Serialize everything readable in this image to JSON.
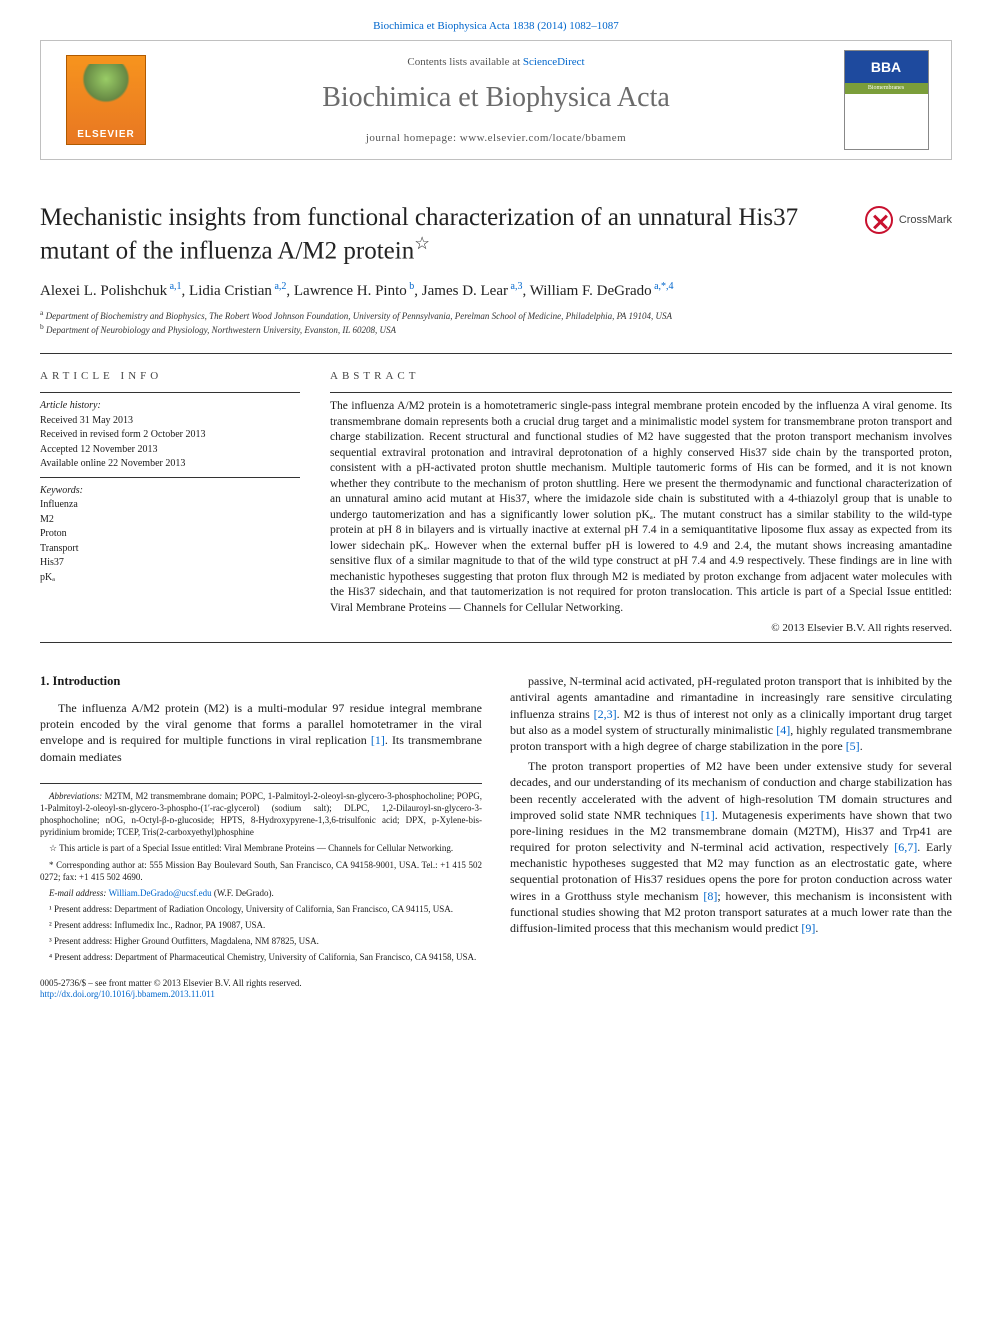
{
  "top_link": {
    "pre": "",
    "link": "Biochimica et Biophysica Acta 1838 (2014) 1082–1087"
  },
  "header": {
    "contents_pre": "Contents lists available at ",
    "contents_link": "ScienceDirect",
    "journal": "Biochimica et Biophysica Acta",
    "homepage": "journal homepage: www.elsevier.com/locate/bbamem",
    "elsevier": "ELSEVIER",
    "bba": "BBA",
    "bba_sub": "Biomembranes"
  },
  "title": {
    "line": "Mechanistic insights from functional characterization of an unnatural His37 mutant of the influenza A/M2 protein",
    "star": "☆"
  },
  "crossmark": "CrossMark",
  "authors": {
    "a1": {
      "name": "Alexei L. Polishchuk",
      "sup": " a,1"
    },
    "a2": {
      "name": "Lidia Cristian",
      "sup": " a,2"
    },
    "a3": {
      "name": "Lawrence H. Pinto",
      "sup": " b"
    },
    "a4": {
      "name": "James D. Lear",
      "sup": " a,3"
    },
    "a5": {
      "name": "William F. DeGrado",
      "sup": " a,*,4"
    }
  },
  "affil": {
    "a": "Department of Biochemistry and Biophysics, The Robert Wood Johnson Foundation, University of Pennsylvania, Perelman School of Medicine, Philadelphia, PA 19104, USA",
    "b": "Department of Neurobiology and Physiology, Northwestern University, Evanston, IL 60208, USA"
  },
  "info": {
    "heading": "article info",
    "hist_head": "Article history:",
    "h1": "Received 31 May 2013",
    "h2": "Received in revised form 2 October 2013",
    "h3": "Accepted 12 November 2013",
    "h4": "Available online 22 November 2013",
    "kw_head": "Keywords:",
    "k1": "Influenza",
    "k2": "M2",
    "k3": "Proton",
    "k4": "Transport",
    "k5": "His37",
    "k6": "pKₐ"
  },
  "abstract": {
    "heading": "abstract",
    "text": "The influenza A/M2 protein is a homotetrameric single-pass integral membrane protein encoded by the influenza A viral genome. Its transmembrane domain represents both a crucial drug target and a minimalistic model system for transmembrane proton transport and charge stabilization. Recent structural and functional studies of M2 have suggested that the proton transport mechanism involves sequential extraviral protonation and intraviral deprotonation of a highly conserved His37 side chain by the transported proton, consistent with a pH-activated proton shuttle mechanism. Multiple tautomeric forms of His can be formed, and it is not known whether they contribute to the mechanism of proton shuttling. Here we present the thermodynamic and functional characterization of an unnatural amino acid mutant at His37, where the imidazole side chain is substituted with a 4-thiazolyl group that is unable to undergo tautomerization and has a significantly lower solution pKₐ. The mutant construct has a similar stability to the wild-type protein at pH 8 in bilayers and is virtually inactive at external pH 7.4 in a semiquantitative liposome flux assay as expected from its lower sidechain pKₐ. However when the external buffer pH is lowered to 4.9 and 2.4, the mutant shows increasing amantadine sensitive flux of a similar magnitude to that of the wild type construct at pH 7.4 and 4.9 respectively. These findings are in line with mechanistic hypotheses suggesting that proton flux through M2 is mediated by proton exchange from adjacent water molecules with the His37 sidechain, and that tautomerization is not required for proton translocation. This article is part of a Special Issue entitled: Viral Membrane Proteins — Channels for Cellular Networking.",
    "copyright": "© 2013 Elsevier B.V. All rights reserved."
  },
  "section": {
    "num": "1.",
    "title": "Introduction"
  },
  "body": {
    "col1_p1": "The influenza A/M2 protein (M2) is a multi-modular 97 residue integral membrane protein encoded by the viral genome that forms a parallel homotetramer in the viral envelope and is required for multiple functions in viral replication [1]. Its transmembrane domain mediates",
    "col2_p1": "passive, N-terminal acid activated, pH-regulated proton transport that is inhibited by the antiviral agents amantadine and rimantadine in increasingly rare sensitive circulating influenza strains [2,3]. M2 is thus of interest not only as a clinically important drug target but also as a model system of structurally minimalistic [4], highly regulated transmembrane proton transport with a high degree of charge stabilization in the pore [5].",
    "col2_p2": "The proton transport properties of M2 have been under extensive study for several decades, and our understanding of its mechanism of conduction and charge stabilization has been recently accelerated with the advent of high-resolution TM domain structures and improved solid state NMR techniques [1]. Mutagenesis experiments have shown that two pore-lining residues in the M2 transmembrane domain (M2TM), His37 and Trp41 are required for proton selectivity and N-terminal acid activation, respectively [6,7]. Early mechanistic hypotheses suggested that M2 may function as an electrostatic gate, where sequential protonation of His37 residues opens the pore for proton conduction across water wires in a Grotthuss style mechanism [8]; however, this mechanism is inconsistent with functional studies showing that M2 proton transport saturates at a much lower rate than the diffusion-limited process that this mechanism would predict [9]."
  },
  "footnotes": {
    "abbrev_head": "Abbreviations:",
    "abbrev": " M2TM, M2 transmembrane domain; POPC, 1-Palmitoyl-2-oleoyl-sn-glycero-3-phosphocholine; POPG, 1-Palmitoyl-2-oleoyl-sn-glycero-3-phospho-(1′-rac-glycerol) (sodium salt); DLPC, 1,2-Dilauroyl-sn-glycero-3-phosphocholine; nOG, n-Octyl-β-ᴅ-glucoside; HPTS, 8-Hydroxypyrene-1,3,6-trisulfonic acid; DPX, p-Xylene-bis-pyridinium bromide; TCEP, Tris(2-carboxyethyl)phosphine",
    "star": "☆  This article is part of a Special Issue entitled: Viral Membrane Proteins — Channels for Cellular Networking.",
    "corr": "*  Corresponding author at: 555 Mission Bay Boulevard South, San Francisco, CA 94158-9001, USA. Tel.: +1 415 502 0272; fax: +1 415 502 4690.",
    "email_pre": "E-mail address: ",
    "email": "William.DeGrado@ucsf.edu",
    "email_post": " (W.F. DeGrado).",
    "n1": "¹  Present address: Department of Radiation Oncology, University of California, San Francisco, CA 94115, USA.",
    "n2": "²  Present address: Influmedix Inc., Radnor, PA 19087, USA.",
    "n3": "³  Present address: Higher Ground Outfitters, Magdalena, NM 87825, USA.",
    "n4": "⁴  Present address: Department of Pharmaceutical Chemistry, University of California, San Francisco, CA 94158, USA."
  },
  "footer": {
    "line1": "0005-2736/$ – see front matter © 2013 Elsevier B.V. All rights reserved.",
    "doi": "http://dx.doi.org/10.1016/j.bbamem.2013.11.011"
  },
  "refs": {
    "r1": "[1]",
    "r2": "[2,3]",
    "r3": "[4]",
    "r4": "[5]",
    "r5": "[1]",
    "r6": "[6,7]",
    "r7": "[8]",
    "r8": "[9]"
  },
  "colors": {
    "link": "#0066cc",
    "text": "#1a1a1a",
    "gray": "#6b6b6b",
    "elsevier": "#f7941e",
    "bba_blue": "#1e4a9e",
    "bba_green": "#7b9e3a",
    "crossmark": "#c8102e"
  }
}
